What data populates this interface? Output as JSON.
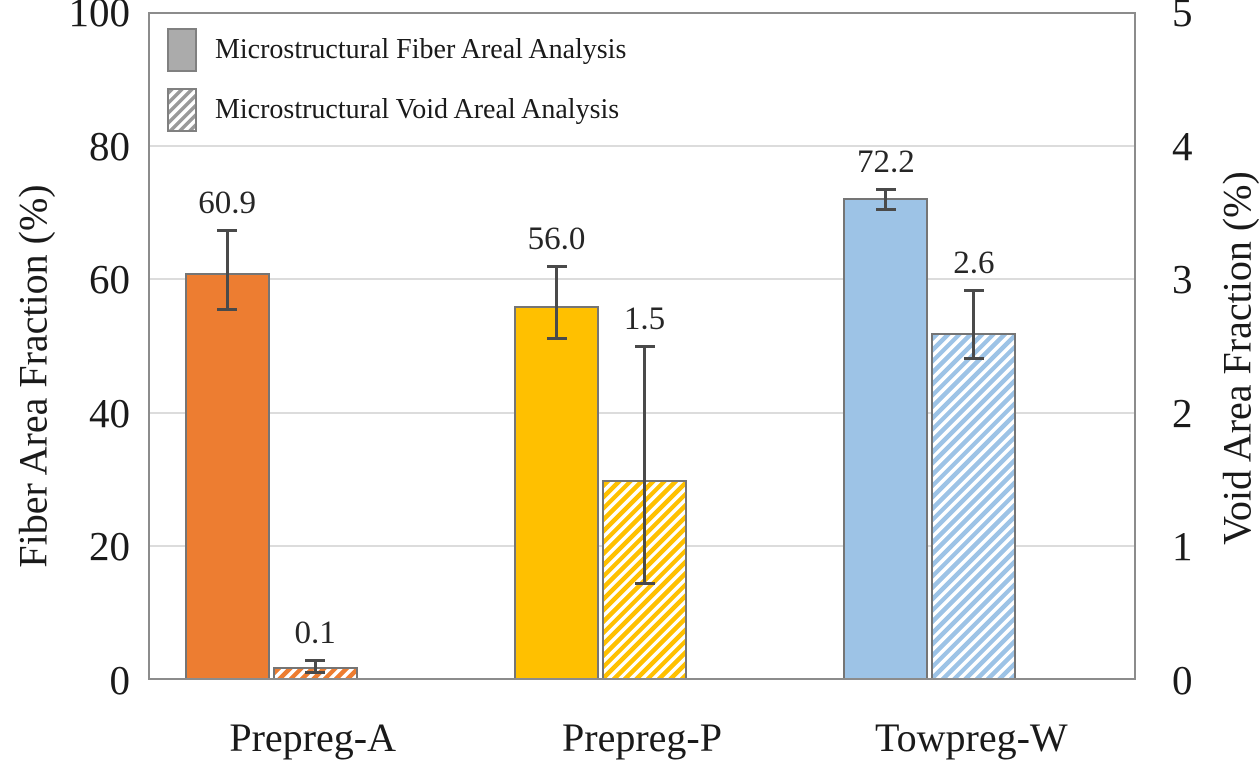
{
  "chart_data": {
    "type": "bar",
    "categories": [
      "Prepreg-A",
      "Prepreg-P",
      "Towpreg-W"
    ],
    "series": [
      {
        "name": "Microstructural Fiber Areal Analysis",
        "axis": "left",
        "style": "solid",
        "values": [
          60.9,
          56.0,
          72.2
        ],
        "labels": [
          "60.9",
          "56.0",
          "72.2"
        ],
        "colors": [
          "#ED7D31",
          "#FFC000",
          "#9DC3E6"
        ],
        "err_plus": [
          6.5,
          6.0,
          1.3
        ],
        "err_minus": [
          5.5,
          5.0,
          1.9
        ]
      },
      {
        "name": "Microstructural Void Areal Analysis",
        "axis": "right",
        "style": "hatched",
        "values": [
          0.1,
          1.5,
          2.6
        ],
        "labels": [
          "0.1",
          "1.5",
          "2.6"
        ],
        "colors": [
          "#ED7D31",
          "#FFC000",
          "#9DC3E6"
        ],
        "err_plus": [
          0.05,
          1.0,
          0.32
        ],
        "err_minus": [
          0.05,
          0.78,
          0.2
        ]
      }
    ],
    "left_axis": {
      "label": "Fiber Area Fraction (%)",
      "min": 0,
      "max": 100,
      "ticks": [
        0,
        20,
        40,
        60,
        80,
        100
      ]
    },
    "right_axis": {
      "label": "Void Area Fraction (%)",
      "min": 0,
      "max": 5,
      "ticks": [
        0,
        1,
        2,
        3,
        4,
        5
      ]
    },
    "grid": "horizontal-only",
    "legend_position": "top-left-inside",
    "styles": {
      "grid_color": "#DCDCDC",
      "border_color": "#8C8C8C",
      "bar_edge_color": "#757575",
      "error_bar_color": "#4A4A4A",
      "legend_fill": "#ABABAB",
      "legend_hatch": "#9A9A9A",
      "text_color": "#1A1A1A"
    }
  }
}
